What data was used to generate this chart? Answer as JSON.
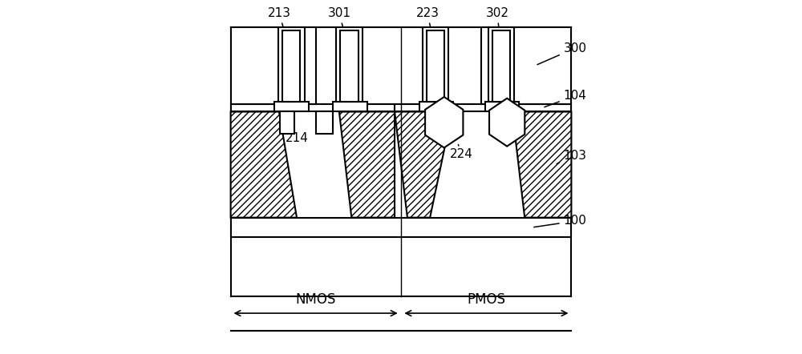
{
  "bg_color": "#ffffff",
  "line_color": "#000000",
  "figsize": [
    10.0,
    4.42
  ],
  "dpi": 100
}
